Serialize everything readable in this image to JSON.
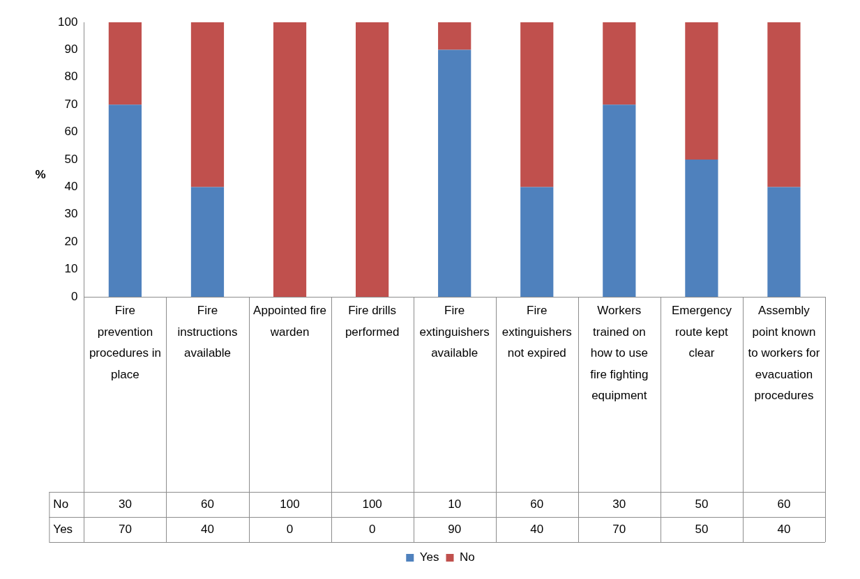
{
  "chart_data": {
    "type": "bar",
    "stacked": true,
    "ylabel": "%",
    "categories": [
      "Fire prevention procedures in place",
      "Fire instructions available",
      "Appointed fire warden",
      "Fire drills performed",
      "Fire extinguishers available",
      "Fire extinguishers not expired",
      "Workers trained on how to use fire fighting equipment",
      "Emergency route kept clear",
      "Assembly point known to workers for evacuation procedures"
    ],
    "series": [
      {
        "name": "Yes",
        "color": "#4f81bd",
        "values": [
          70,
          40,
          0,
          0,
          90,
          40,
          70,
          50,
          40
        ]
      },
      {
        "name": "No",
        "color": "#c0504d",
        "values": [
          30,
          60,
          100,
          100,
          10,
          60,
          30,
          50,
          60
        ]
      }
    ],
    "ylim": [
      0,
      100
    ],
    "yticks": [
      0,
      10,
      20,
      30,
      40,
      50,
      60,
      70,
      80,
      90,
      100
    ],
    "grid": false,
    "legend": "bottom",
    "data_labels": true
  }
}
